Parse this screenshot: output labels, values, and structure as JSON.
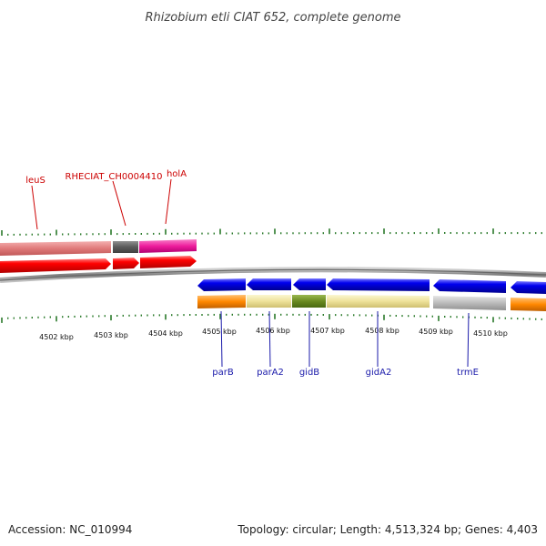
{
  "title": "Rhizobium etli CIAT 652, complete genome",
  "footer": {
    "accession": "Accession: NC_010994",
    "summary": "Topology: circular; Length: 4,513,324 bp; Genes: 4,403"
  },
  "scale_labels": [
    "4502 kbp",
    "4503 kbp",
    "4504 kbp",
    "4505 kbp",
    "4506 kbp",
    "4507 kbp",
    "4508 kbp",
    "4509 kbp",
    "4510 kbp"
  ],
  "gene_labels_top": [
    "leuS",
    "RHECIAT_CH0004410",
    "holA"
  ],
  "gene_labels_bottom": [
    "parB",
    "parA2",
    "gidB",
    "gidA2",
    "trmE"
  ],
  "colors": {
    "top_label": "#cc0000",
    "bottom_label": "#1a1aaa",
    "tick": "#2a7a2a",
    "backbone": "#888888",
    "forward_arrow": "#ff0000",
    "reverse_arrow": "#0000ee",
    "cog_salmon": "#e88080",
    "cog_gray": "#606060",
    "cog_magenta": "#ee1c9c",
    "cog_orange": "#ff8800",
    "cog_khaki": "#f0e6a0",
    "cog_olive": "#6a8a20",
    "cog_silver": "#bbbbbb"
  }
}
